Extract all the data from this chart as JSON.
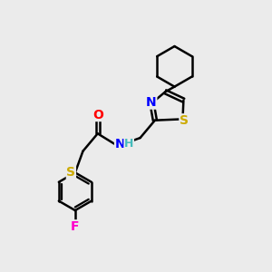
{
  "bg_color": "#ebebeb",
  "bond_color": "#000000",
  "bond_width": 1.8,
  "atom_colors": {
    "N": "#0000ff",
    "O": "#ff0000",
    "S": "#ccaa00",
    "F": "#ff00cc",
    "H": "#44bbbb"
  },
  "font_size": 10,
  "fig_size": [
    3.0,
    3.0
  ],
  "dpi": 100
}
